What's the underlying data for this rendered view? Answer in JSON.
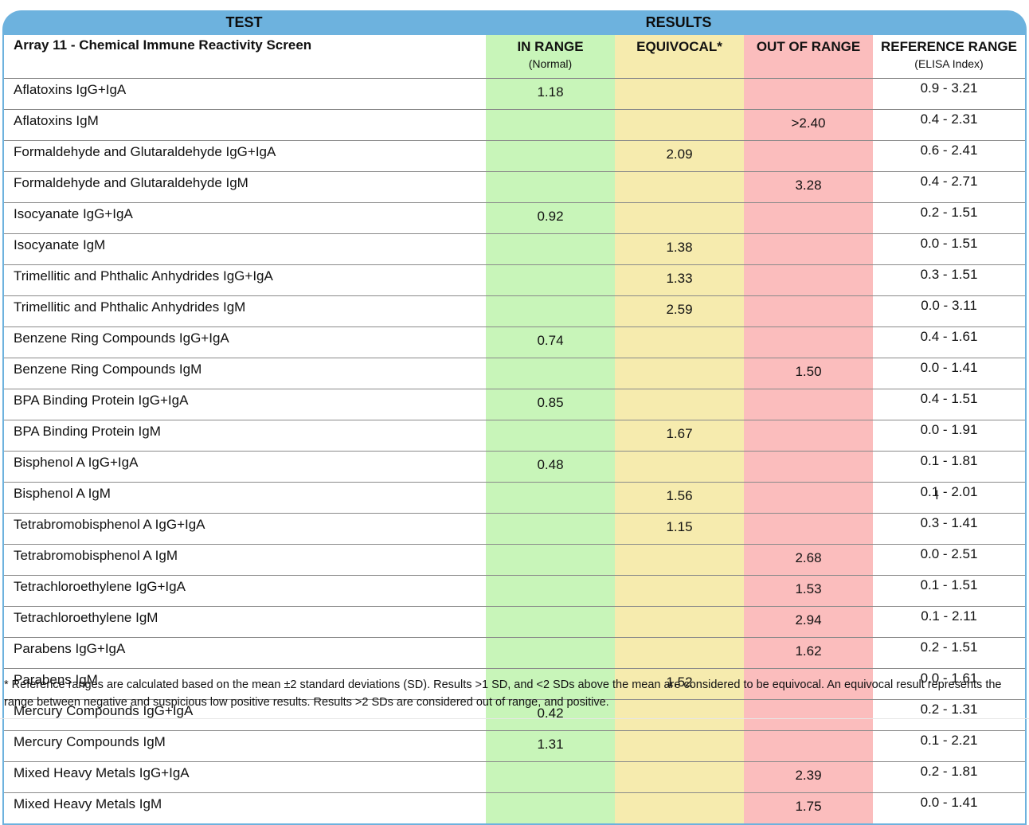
{
  "header": {
    "test_title": "TEST",
    "results_title": "RESULTS",
    "panel_name": "Array 11 - Chemical Immune Reactivity Screen",
    "col_in": "IN RANGE",
    "col_in_sub": "(Normal)",
    "col_eq": "EQUIVOCAL*",
    "col_out": "OUT OF RANGE",
    "col_ref": "REFERENCE RANGE",
    "col_ref_sub": "(ELISA Index)"
  },
  "colors": {
    "header_bar": "#6db2de",
    "in_range": "#c8f5b9",
    "equivocal": "#f6ebae",
    "out_of_range": "#fbbdbd"
  },
  "rows": [
    {
      "test": "Aflatoxins IgG+IgA",
      "in": "1.18",
      "eq": "",
      "out": "",
      "ref": "0.9 - 3.21"
    },
    {
      "test": "Aflatoxins IgM",
      "in": "",
      "eq": "",
      "out": ">2.40",
      "ref": "0.4 - 2.31"
    },
    {
      "test": "Formaldehyde and Glutaraldehyde IgG+IgA",
      "in": "",
      "eq": "2.09",
      "out": "",
      "ref": "0.6 - 2.41"
    },
    {
      "test": "Formaldehyde and Glutaraldehyde IgM",
      "in": "",
      "eq": "",
      "out": "3.28",
      "ref": "0.4 - 2.71"
    },
    {
      "test": "Isocyanate IgG+IgA",
      "in": "0.92",
      "eq": "",
      "out": "",
      "ref": "0.2 - 1.51"
    },
    {
      "test": "Isocyanate IgM",
      "in": "",
      "eq": "1.38",
      "out": "",
      "ref": "0.0 - 1.51"
    },
    {
      "test": "Trimellitic and Phthalic Anhydrides IgG+IgA",
      "in": "",
      "eq": "1.33",
      "out": "",
      "ref": "0.3 - 1.51"
    },
    {
      "test": "Trimellitic and Phthalic Anhydrides IgM",
      "in": "",
      "eq": "2.59",
      "out": "",
      "ref": "0.0 - 3.11"
    },
    {
      "test": "Benzene Ring Compounds IgG+IgA",
      "in": "0.74",
      "eq": "",
      "out": "",
      "ref": "0.4 - 1.61"
    },
    {
      "test": "Benzene Ring Compounds IgM",
      "in": "",
      "eq": "",
      "out": "1.50",
      "ref": "0.0 - 1.41"
    },
    {
      "test": "BPA Binding Protein IgG+IgA",
      "in": "0.85",
      "eq": "",
      "out": "",
      "ref": "0.4 - 1.51"
    },
    {
      "test": "BPA Binding Protein IgM",
      "in": "",
      "eq": "1.67",
      "out": "",
      "ref": "0.0 - 1.91"
    },
    {
      "test": "Bisphenol A IgG+IgA",
      "in": "0.48",
      "eq": "",
      "out": "",
      "ref": "0.1 - 1.81"
    },
    {
      "test": "Bisphenol A IgM",
      "in": "",
      "eq": "1.56",
      "out": "",
      "ref": "0.1 - 2.01"
    },
    {
      "test": "Tetrabromobisphenol A IgG+IgA",
      "in": "",
      "eq": "1.15",
      "out": "",
      "ref": "0.3 - 1.41"
    },
    {
      "test": "Tetrabromobisphenol A IgM",
      "in": "",
      "eq": "",
      "out": "2.68",
      "ref": "0.0 - 2.51"
    },
    {
      "test": "Tetrachloroethylene IgG+IgA",
      "in": "",
      "eq": "",
      "out": "1.53",
      "ref": "0.1 - 1.51"
    },
    {
      "test": "Tetrachloroethylene IgM",
      "in": "",
      "eq": "",
      "out": "2.94",
      "ref": "0.1 - 2.11"
    },
    {
      "test": "Parabens IgG+IgA",
      "in": "",
      "eq": "",
      "out": "1.62",
      "ref": "0.2 - 1.51"
    },
    {
      "test": "Parabens IgM",
      "in": "",
      "eq": "1.52",
      "out": "",
      "ref": "0.0 - 1.61"
    },
    {
      "test": "Mercury Compounds IgG+IgA",
      "in": "0.42",
      "eq": "",
      "out": "",
      "ref": "0.2 - 1.31"
    },
    {
      "test": "Mercury Compounds IgM",
      "in": "1.31",
      "eq": "",
      "out": "",
      "ref": "0.1 - 2.21"
    },
    {
      "test": "Mixed Heavy Metals IgG+IgA",
      "in": "",
      "eq": "",
      "out": "2.39",
      "ref": "0.2 - 1.81"
    },
    {
      "test": "Mixed Heavy Metals IgM",
      "in": "",
      "eq": "",
      "out": "1.75",
      "ref": "0.0 - 1.41"
    }
  ],
  "footnote": "* Reference ranges are calculated based on the mean ±2 standard deviations (SD). Results >1 SD, and <2 SDs above the mean are considered to be equivocal. An equivocal result represents the range between negative and suspicious low positive results. Results >2 SDs are considered out of range, and positive.",
  "cursor_icon": "text-cursor-icon"
}
